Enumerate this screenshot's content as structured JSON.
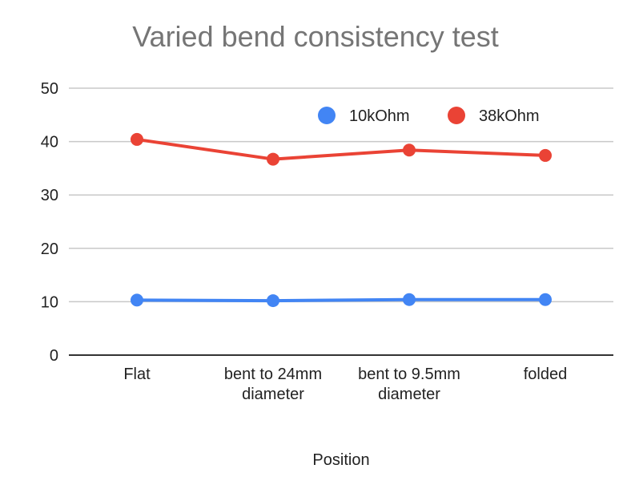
{
  "chart_data": {
    "type": "line",
    "title": "Varied bend consistency test",
    "xlabel": "Position",
    "ylabel": "",
    "categories": [
      [
        "Flat"
      ],
      [
        "bent to 24mm",
        "diameter"
      ],
      [
        "bent to 9.5mm",
        "diameter"
      ],
      [
        "folded"
      ]
    ],
    "ylim": [
      0,
      50
    ],
    "yticks": [
      0,
      10,
      20,
      30,
      40,
      50
    ],
    "grid": true,
    "legend_position": "top-right",
    "series": [
      {
        "name": "10kOhm",
        "color": "#4285F4",
        "values": [
          10.3,
          10.2,
          10.4,
          10.4
        ]
      },
      {
        "name": "38kOhm",
        "color": "#EA4335",
        "values": [
          40.4,
          36.7,
          38.4,
          37.4
        ]
      }
    ]
  }
}
